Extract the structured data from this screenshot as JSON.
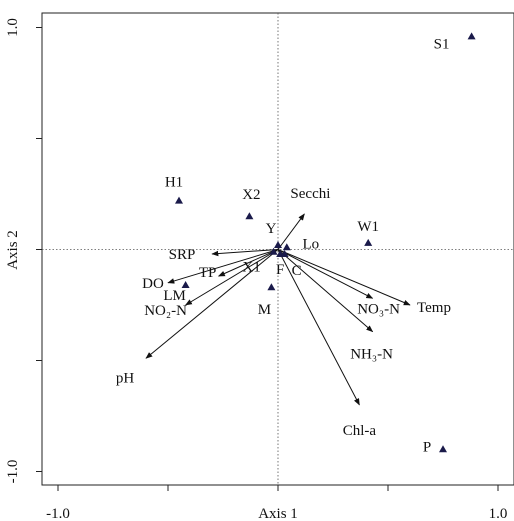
{
  "chart_data": {
    "type": "scatter",
    "subtype": "biplot",
    "xlabel": "Axis 1",
    "ylabel": "Axis 2",
    "xlim": [
      -1.0,
      1.0
    ],
    "ylim": [
      -1.0,
      1.0
    ],
    "x_tick_labels": [
      {
        "value": -1.0,
        "label": "-1.0"
      },
      {
        "value": 1.0,
        "label": "1.0"
      }
    ],
    "y_tick_labels": [
      {
        "value": 1.0,
        "label": "1.0"
      },
      {
        "value": -1.0,
        "label": "-1.0"
      }
    ],
    "minor_ticks": [
      -0.5,
      0.5
    ],
    "reference_lines": {
      "x": 0,
      "y": 0,
      "style": "dotted"
    },
    "sites": [
      {
        "name": "S1",
        "x": 0.88,
        "y": 0.96
      },
      {
        "name": "H1",
        "x": -0.45,
        "y": 0.22
      },
      {
        "name": "X2",
        "x": -0.13,
        "y": 0.15
      },
      {
        "name": "W1",
        "x": 0.41,
        "y": 0.03
      },
      {
        "name": "Y",
        "x": 0.0,
        "y": 0.02
      },
      {
        "name": "Lo",
        "x": 0.04,
        "y": 0.01
      },
      {
        "name": "X1",
        "x": -0.02,
        "y": -0.01
      },
      {
        "name": "F",
        "x": 0.01,
        "y": -0.02
      },
      {
        "name": "C",
        "x": 0.03,
        "y": -0.02
      },
      {
        "name": "LM",
        "x": -0.42,
        "y": -0.16
      },
      {
        "name": "M",
        "x": -0.03,
        "y": -0.17
      },
      {
        "name": "P",
        "x": 0.75,
        "y": -0.9
      }
    ],
    "vectors": [
      {
        "name": "Secchi",
        "x": 0.12,
        "y": 0.16
      },
      {
        "name": "SRP",
        "x": -0.3,
        "y": -0.02
      },
      {
        "name": "DO",
        "x": -0.5,
        "y": -0.15
      },
      {
        "name": "TP",
        "x": -0.27,
        "y": -0.12
      },
      {
        "name": "NO₂-N",
        "x": -0.42,
        "y": -0.25
      },
      {
        "name": "pH",
        "x": -0.6,
        "y": -0.49
      },
      {
        "name": "NO₃-N",
        "x": 0.43,
        "y": -0.22
      },
      {
        "name": "Temp",
        "x": 0.6,
        "y": -0.25
      },
      {
        "name": "NH₃-N",
        "x": 0.43,
        "y": -0.37
      },
      {
        "name": "Chl-a",
        "x": 0.37,
        "y": -0.7
      }
    ]
  }
}
